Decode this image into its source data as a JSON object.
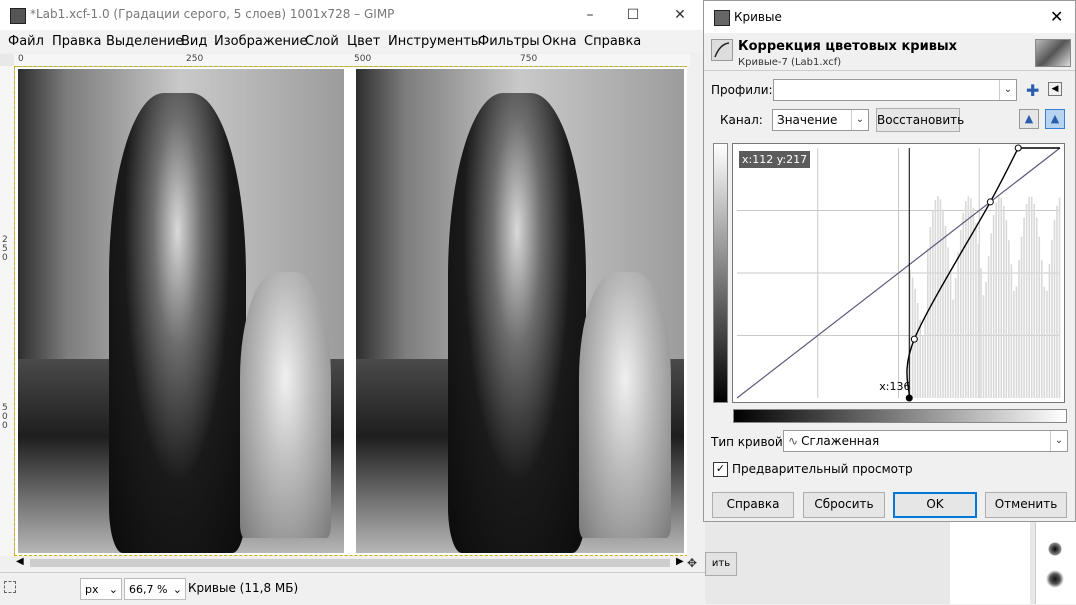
{
  "main_window": {
    "title": "*Lab1.xcf-1.0 (Градации серого, 5 слоев) 1001x728 – GIMP",
    "menu": [
      "Файл",
      "Правка",
      "Выделение",
      "Вид",
      "Изображение",
      "Слой",
      "Цвет",
      "Инструменты",
      "Фильтры",
      "Окна",
      "Справка"
    ],
    "ruler_top_ticks": [
      "0",
      "250",
      "500",
      "750"
    ],
    "ruler_left_ticks": [
      "250",
      "500"
    ],
    "status": {
      "unit": "px",
      "zoom": "66,7 %",
      "message": "Кривые (11,8 МБ)"
    }
  },
  "curves_dialog": {
    "title": "Кривые",
    "header_title": "Коррекция цветовых кривых",
    "header_subtitle": "Кривые-7 (Lab1.xcf)",
    "profiles_label": "Профили:",
    "profiles_value": "",
    "channel_label": "Канал:",
    "channel_value": "Значение",
    "reset_channel_label": "Восстановить",
    "coords_readout": "x:112 y:217",
    "cursor_readout": "x:136",
    "curve_type_label": "Тип кривой:",
    "curve_type_value": "Сглаженная",
    "preview_label": "Предварительный просмотр",
    "preview_checked": true,
    "buttons": {
      "help": "Справка",
      "reset": "Сбросить",
      "ok": "OK",
      "cancel": "Отменить"
    }
  },
  "right_panel": {
    "button_fragment": "ить"
  },
  "curve": {
    "control_points": [
      [
        136,
        0
      ],
      [
        140,
        60
      ],
      [
        200,
        200
      ],
      [
        222,
        255
      ]
    ],
    "cursor_x": 136
  },
  "colors": {
    "accent": "#0078d7",
    "grid_line": "#c8c8c8",
    "diagonal": "#5a5a7a"
  }
}
